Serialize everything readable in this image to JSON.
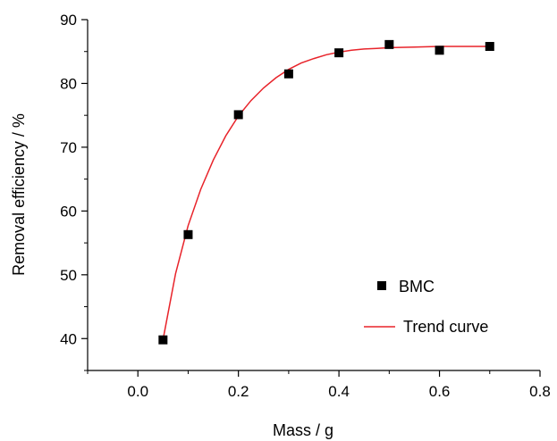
{
  "chart_data": {
    "type": "scatter",
    "xlabel": "Mass / g",
    "ylabel": "Removal efficiency / %",
    "xlim": [
      -0.1,
      0.8
    ],
    "ylim": [
      35,
      90
    ],
    "xticks": [
      0.0,
      0.2,
      0.4,
      0.6,
      0.8
    ],
    "xtick_labels": [
      "0.0",
      "0.2",
      "0.4",
      "0.6",
      "0.8"
    ],
    "yticks": [
      40,
      50,
      60,
      70,
      80,
      90
    ],
    "ytick_labels": [
      "40",
      "50",
      "60",
      "70",
      "80",
      "90"
    ],
    "grid": false,
    "legend_position": "right-middle",
    "series": [
      {
        "name": "BMC",
        "kind": "scatter",
        "marker": "square",
        "color": "#000000",
        "x": [
          0.05,
          0.1,
          0.2,
          0.3,
          0.4,
          0.5,
          0.6,
          0.7
        ],
        "y": [
          39.8,
          56.3,
          75.1,
          81.5,
          84.8,
          86.1,
          85.2,
          85.8
        ]
      },
      {
        "name": "Trend curve",
        "kind": "line",
        "color": "#e8232a",
        "x": [
          0.05,
          0.075,
          0.1,
          0.125,
          0.15,
          0.175,
          0.2,
          0.225,
          0.25,
          0.275,
          0.3,
          0.325,
          0.35,
          0.375,
          0.4,
          0.425,
          0.45,
          0.475,
          0.5,
          0.55,
          0.6,
          0.65,
          0.7
        ],
        "y": [
          39.8,
          50.2,
          57.7,
          63.4,
          68.0,
          71.8,
          74.9,
          77.3,
          79.3,
          80.9,
          82.2,
          83.2,
          83.9,
          84.5,
          84.9,
          85.2,
          85.4,
          85.5,
          85.6,
          85.7,
          85.8,
          85.8,
          85.8
        ]
      }
    ]
  }
}
